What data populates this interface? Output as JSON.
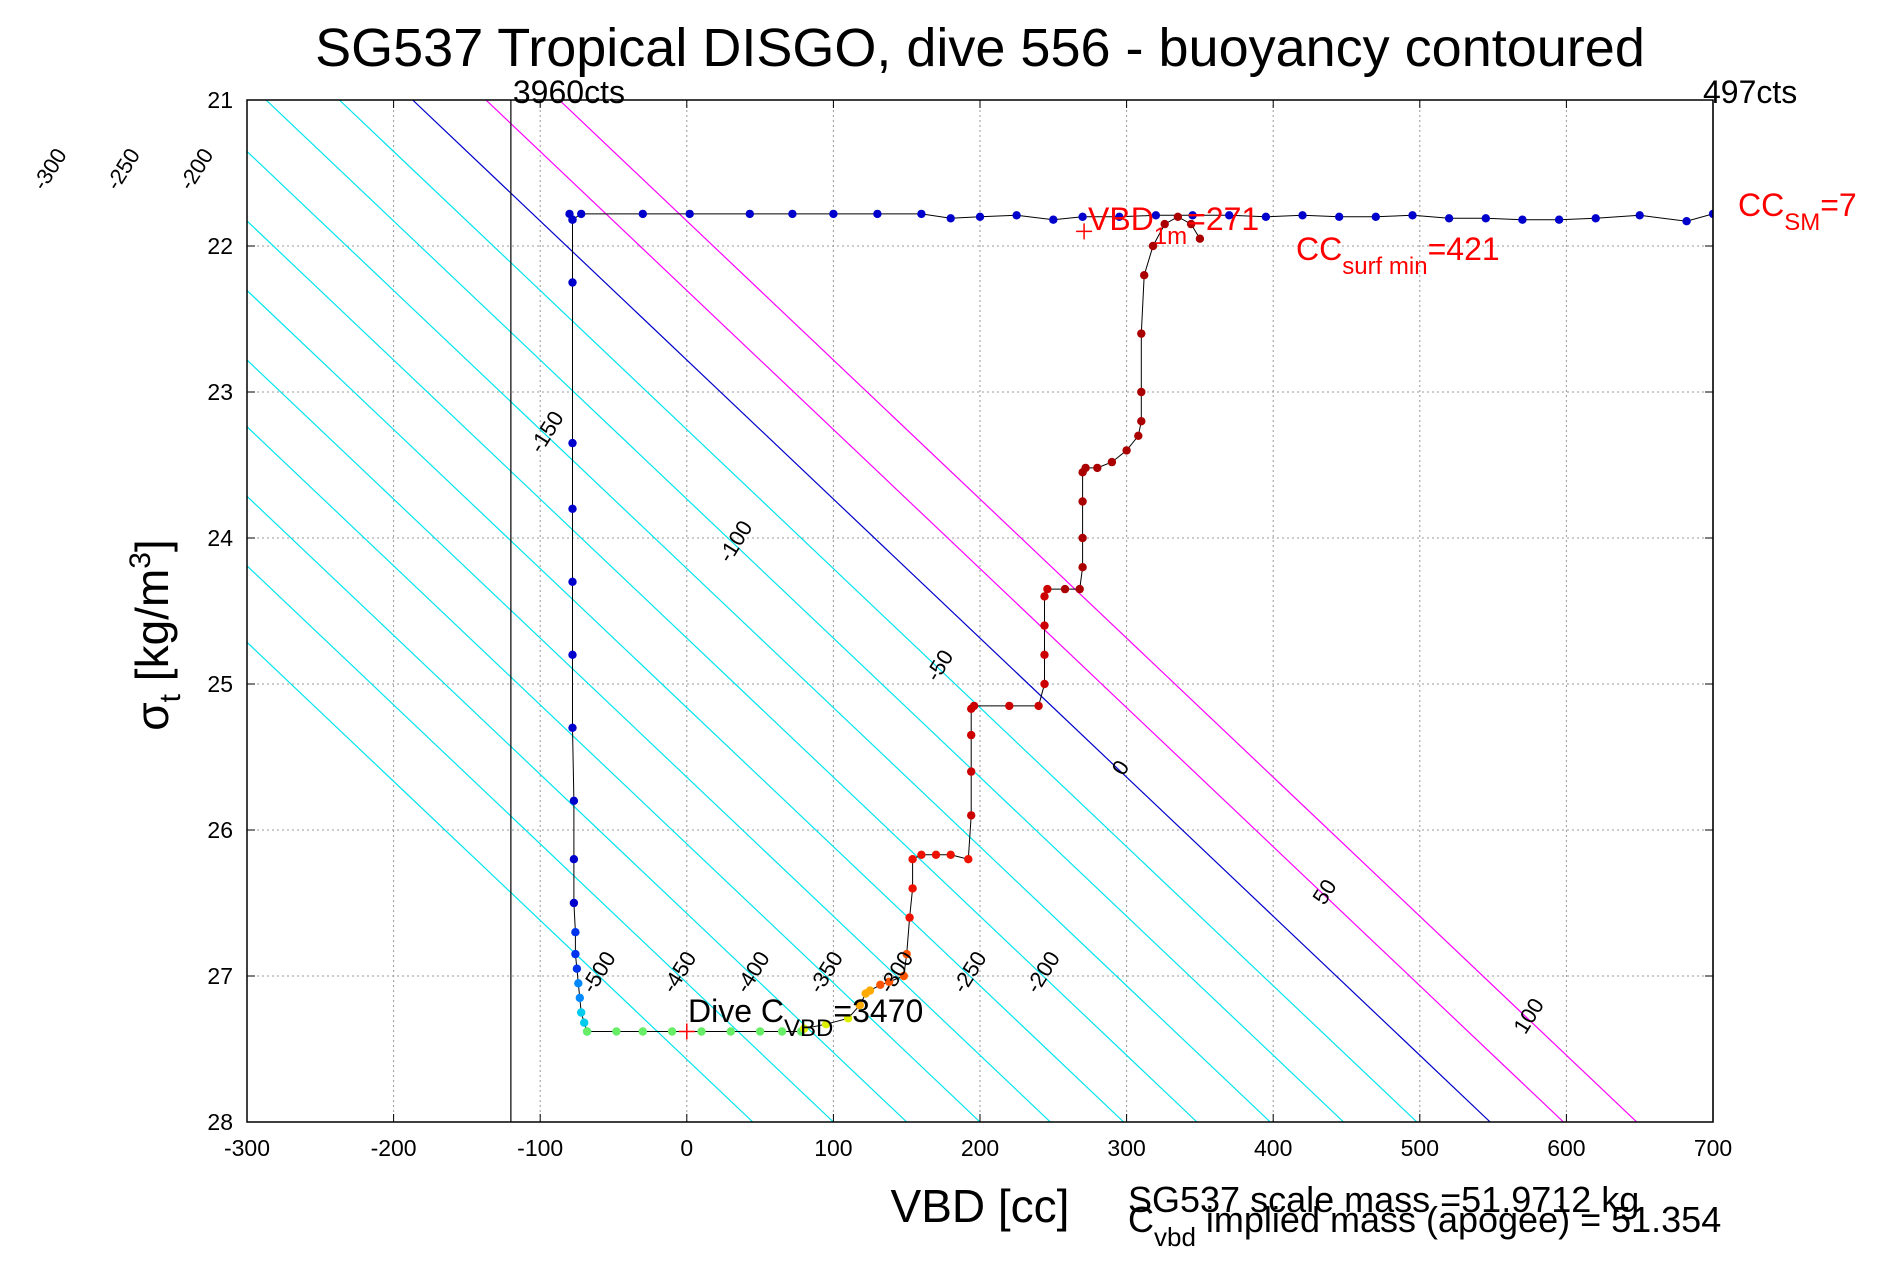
{
  "chart_data": {
    "type": "scatter",
    "title": "SG537 Tropical DISGO, dive 556 - buoyancy contoured",
    "xlabel": "VBD [cc]",
    "ylabel_main": "σ",
    "ylabel_sub": "t",
    "ylabel_units": " [kg/m",
    "ylabel_sup": "3",
    "ylabel_close": "]",
    "xlim": [
      -300,
      700
    ],
    "ylim": [
      28,
      21
    ],
    "y_reversed": true,
    "grid": true,
    "xticks": [
      "-300",
      "-200",
      "-100",
      "0",
      "100",
      "200",
      "300",
      "400",
      "500",
      "600",
      "700"
    ],
    "yticks": [
      "21",
      "22",
      "23",
      "24",
      "25",
      "26",
      "27",
      "28"
    ],
    "vlines": [
      {
        "x": -120,
        "label": "3960cts"
      },
      {
        "x": 700,
        "label": "497cts"
      }
    ],
    "contours": {
      "slope_cc_per_sigma": 105,
      "levels": [
        -500,
        -450,
        -400,
        -350,
        -300,
        -250,
        -200,
        -150,
        -100,
        -50,
        0,
        50,
        100
      ],
      "ref_x_at_sigma28": {
        "-500": 45,
        "-450": 100,
        "-400": 150,
        "-350": 200,
        "-300": 248,
        "-250": 298,
        "-200": 348,
        "-150": 398,
        "-100": 448,
        "-50": 498,
        "0": 548,
        "50": 598,
        "100": 648
      },
      "colors": {
        "negative": "#00e5ee",
        "zero": "#0000cc",
        "positive": "#ff00ff"
      },
      "labels_top": [
        "-500",
        "-450",
        "-400",
        "-350",
        "-300",
        "-250",
        "-200"
      ],
      "labels_bottom": [
        "-500",
        "-450",
        "-400",
        "-350",
        "-300",
        "-250",
        "-200"
      ],
      "labels_right": [
        "-150",
        "-100",
        "-50",
        "0",
        "50",
        "100"
      ]
    },
    "series": [
      {
        "role": "surface",
        "color": "#0000cc",
        "x": [
          -80,
          -78,
          -72,
          -30,
          2,
          43,
          72,
          100,
          130,
          160,
          180,
          200,
          225,
          250,
          270,
          295,
          320,
          345,
          370,
          395,
          420,
          445,
          470,
          495,
          520,
          545,
          570,
          595,
          620,
          650,
          682,
          700
        ],
        "y": [
          21.78,
          21.82,
          21.78,
          21.78,
          21.78,
          21.78,
          21.78,
          21.78,
          21.78,
          21.78,
          21.81,
          21.8,
          21.79,
          21.82,
          21.8,
          21.8,
          21.79,
          21.79,
          21.79,
          21.8,
          21.79,
          21.8,
          21.8,
          21.79,
          21.81,
          21.81,
          21.82,
          21.82,
          21.81,
          21.79,
          21.83,
          21.78
        ]
      },
      {
        "role": "dive",
        "color": "#0000cc",
        "x": [
          -78,
          -78,
          -78,
          -78,
          -78,
          -78,
          -78,
          -77,
          -77,
          -77,
          -76,
          -76,
          -75,
          -74,
          -73,
          -72,
          -70,
          -68
        ],
        "y": [
          21.82,
          22.25,
          23.35,
          23.8,
          24.3,
          24.8,
          25.3,
          25.8,
          26.2,
          26.5,
          26.7,
          26.85,
          26.95,
          27.05,
          27.15,
          27.25,
          27.32,
          27.38
        ]
      },
      {
        "role": "apogee",
        "color": "#66ee66",
        "x": [
          -68,
          -48,
          -30,
          -10,
          10,
          30,
          50,
          65,
          78
        ],
        "y": [
          27.38,
          27.38,
          27.38,
          27.38,
          27.38,
          27.38,
          27.38,
          27.38,
          27.38
        ]
      },
      {
        "role": "climb",
        "color": "#aa0000",
        "x": [
          80,
          95,
          110,
          118,
          122,
          125,
          132,
          138,
          148,
          150,
          152,
          154,
          154,
          160,
          170,
          180,
          192,
          194,
          194,
          194,
          194,
          196,
          220,
          240,
          244,
          244,
          244,
          244,
          246,
          258,
          268,
          270,
          270,
          270,
          270,
          272,
          280,
          290,
          300,
          308,
          310,
          310,
          310,
          312,
          318,
          326,
          335,
          344,
          350
        ],
        "y": [
          27.36,
          27.33,
          27.29,
          27.2,
          27.12,
          27.1,
          27.06,
          27.04,
          27.0,
          26.85,
          26.6,
          26.4,
          26.2,
          26.17,
          26.17,
          26.17,
          26.2,
          25.9,
          25.6,
          25.35,
          25.17,
          25.15,
          25.15,
          25.15,
          25.0,
          24.8,
          24.6,
          24.4,
          24.35,
          24.35,
          24.35,
          24.2,
          24.0,
          23.75,
          23.55,
          23.52,
          23.52,
          23.48,
          23.4,
          23.3,
          23.2,
          23.0,
          22.6,
          22.2,
          22.0,
          21.85,
          21.8,
          21.85,
          21.95
        ]
      }
    ],
    "annotations": {
      "vbd1m_main": "VBD",
      "vbd1m_sub": "1m",
      "vbd1m_val": "=271",
      "ccsurf_main": "CC",
      "ccsurf_sub": "surf min",
      "ccsurf_val": "=421",
      "ccsm_main": "CC",
      "ccsm_sub": "SM",
      "ccsm_val": "=7",
      "divec_main": "Dive C",
      "divec_sub": "VBD",
      "divec_val": "=3470",
      "scale_mass": "SG537 scale mass =51.9712 kg",
      "implied_main": "C",
      "implied_sub": "vbd",
      "implied_val": " implied mass (apogee) = 51.354"
    },
    "markers": [
      {
        "x": 271,
        "y": 21.9,
        "color": "#ff0000"
      },
      {
        "x": 0,
        "y": 27.38,
        "color": "#ff0000"
      }
    ]
  }
}
